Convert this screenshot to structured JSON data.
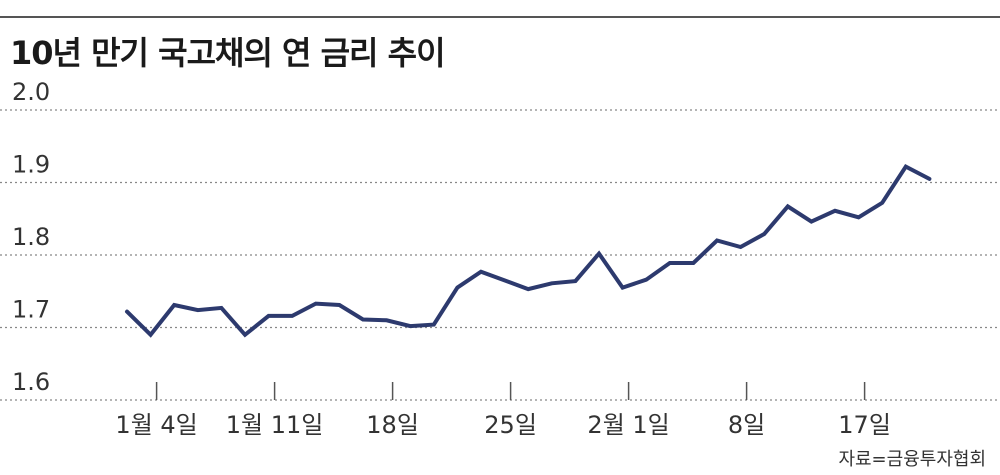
{
  "chart_data": {
    "type": "line",
    "title": "10년 만기 국고채의 연 금리 추이",
    "source": "자료=금융투자협회",
    "ylim": [
      1.6,
      2.0
    ],
    "yticks": [
      {
        "value": 2.0,
        "label": "2.0"
      },
      {
        "value": 1.9,
        "label": "1.9"
      },
      {
        "value": 1.8,
        "label": "1.8"
      },
      {
        "value": 1.7,
        "label": "1.7"
      },
      {
        "value": 1.6,
        "label": "1.6"
      }
    ],
    "xtick_labels": [
      {
        "index": 1,
        "label": "1월 4일"
      },
      {
        "index": 6,
        "label": "1월 11일"
      },
      {
        "index": 11,
        "label": "18일"
      },
      {
        "index": 16,
        "label": "25일"
      },
      {
        "index": 21,
        "label": "2월 1일"
      },
      {
        "index": 26,
        "label": "8일"
      },
      {
        "index": 31,
        "label": "17일"
      }
    ],
    "grid": true,
    "series": [
      {
        "color": "#2d3a6e",
        "values": [
          1.722,
          1.69,
          1.731,
          1.724,
          1.727,
          1.69,
          1.716,
          1.716,
          1.733,
          1.731,
          1.711,
          1.71,
          1.702,
          1.704,
          1.755,
          1.777,
          1.765,
          1.753,
          1.761,
          1.764,
          1.802,
          1.755,
          1.766,
          1.789,
          1.789,
          1.82,
          1.811,
          1.829,
          1.867,
          1.846,
          1.861,
          1.852,
          1.872,
          1.922,
          1.905
        ]
      }
    ]
  },
  "colors": {
    "line": "#2d3a6e",
    "grid": "#888888",
    "axis": "#555555"
  }
}
